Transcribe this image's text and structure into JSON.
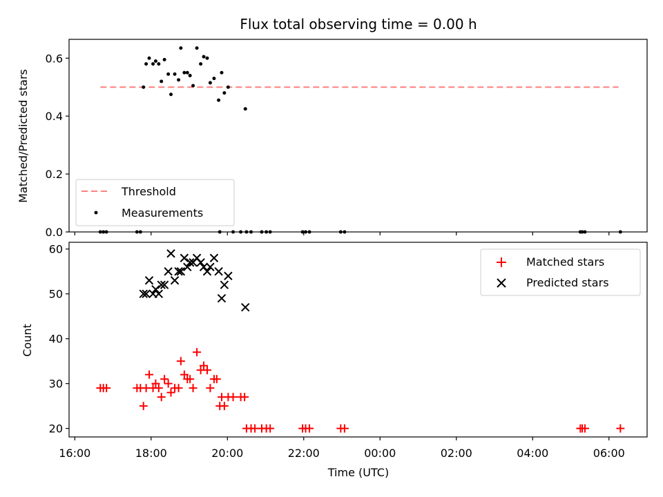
{
  "chart_data": [
    {
      "type": "scatter",
      "title": "Flux total observing time = 0.00 h",
      "ylabel": "Matched/Predicted stars",
      "xlabel": "",
      "xlim": [
        15.85,
        31.0
      ],
      "ylim": [
        0.0,
        0.665
      ],
      "yticks": [
        0.0,
        0.2,
        0.4,
        0.6
      ],
      "ytick_labels": [
        "0.0",
        "0.2",
        "0.4",
        "0.6"
      ],
      "legend": [
        {
          "label": "Threshold",
          "style": "dashed-line",
          "color": "#ff7f7f"
        },
        {
          "label": "Measurements",
          "style": "dot",
          "color": "#000000"
        }
      ],
      "legend_position": "lower-left",
      "threshold": {
        "value": 0.5,
        "x_start": 16.67,
        "x_end": 30.25
      },
      "measurements": [
        {
          "x": 17.8,
          "y": 0.5
        },
        {
          "x": 17.87,
          "y": 0.58
        },
        {
          "x": 17.95,
          "y": 0.6
        },
        {
          "x": 18.05,
          "y": 0.58
        },
        {
          "x": 18.12,
          "y": 0.59
        },
        {
          "x": 18.2,
          "y": 0.58
        },
        {
          "x": 18.27,
          "y": 0.52
        },
        {
          "x": 18.35,
          "y": 0.595
        },
        {
          "x": 18.45,
          "y": 0.545
        },
        {
          "x": 18.52,
          "y": 0.475
        },
        {
          "x": 18.62,
          "y": 0.545
        },
        {
          "x": 18.72,
          "y": 0.525
        },
        {
          "x": 18.78,
          "y": 0.635
        },
        {
          "x": 18.87,
          "y": 0.55
        },
        {
          "x": 18.95,
          "y": 0.55
        },
        {
          "x": 19.02,
          "y": 0.54
        },
        {
          "x": 19.1,
          "y": 0.505
        },
        {
          "x": 19.2,
          "y": 0.635
        },
        {
          "x": 19.3,
          "y": 0.58
        },
        {
          "x": 19.38,
          "y": 0.605
        },
        {
          "x": 19.47,
          "y": 0.6
        },
        {
          "x": 19.55,
          "y": 0.515
        },
        {
          "x": 19.65,
          "y": 0.53
        },
        {
          "x": 19.77,
          "y": 0.455
        },
        {
          "x": 19.85,
          "y": 0.55
        },
        {
          "x": 19.92,
          "y": 0.48
        },
        {
          "x": 20.02,
          "y": 0.5
        },
        {
          "x": 20.47,
          "y": 0.425
        },
        {
          "x": 16.67,
          "y": 0.0
        },
        {
          "x": 16.75,
          "y": 0.0
        },
        {
          "x": 16.83,
          "y": 0.0
        },
        {
          "x": 17.63,
          "y": 0.0
        },
        {
          "x": 17.72,
          "y": 0.0
        },
        {
          "x": 19.8,
          "y": 0.0
        },
        {
          "x": 20.15,
          "y": 0.0
        },
        {
          "x": 20.35,
          "y": 0.0
        },
        {
          "x": 20.5,
          "y": 0.0
        },
        {
          "x": 20.62,
          "y": 0.0
        },
        {
          "x": 20.9,
          "y": 0.0
        },
        {
          "x": 21.02,
          "y": 0.0
        },
        {
          "x": 21.12,
          "y": 0.0
        },
        {
          "x": 21.97,
          "y": 0.0
        },
        {
          "x": 22.05,
          "y": 0.0
        },
        {
          "x": 22.15,
          "y": 0.0
        },
        {
          "x": 22.97,
          "y": 0.0
        },
        {
          "x": 23.07,
          "y": 0.0
        },
        {
          "x": 29.25,
          "y": 0.0
        },
        {
          "x": 29.3,
          "y": 0.0
        },
        {
          "x": 29.37,
          "y": 0.0
        },
        {
          "x": 30.3,
          "y": 0.0
        }
      ]
    },
    {
      "type": "scatter",
      "title": "",
      "xlabel": "Time (UTC)",
      "ylabel": "Count",
      "xlim": [
        15.85,
        31.0
      ],
      "ylim": [
        18.1,
        61.5
      ],
      "xticks": [
        16,
        18,
        20,
        22,
        24,
        26,
        28,
        30
      ],
      "xtick_labels": [
        "16:00",
        "18:00",
        "20:00",
        "22:00",
        "00:00",
        "02:00",
        "04:00",
        "06:00"
      ],
      "yticks": [
        20,
        30,
        40,
        50,
        60
      ],
      "ytick_labels": [
        "20",
        "30",
        "40",
        "50",
        "60"
      ],
      "legend_position": "upper-right",
      "series": [
        {
          "name": "Matched stars",
          "marker": "plus",
          "color": "#ff0000",
          "points": [
            {
              "x": 16.67,
              "y": 29
            },
            {
              "x": 16.75,
              "y": 29
            },
            {
              "x": 16.83,
              "y": 29
            },
            {
              "x": 17.63,
              "y": 29
            },
            {
              "x": 17.72,
              "y": 29
            },
            {
              "x": 17.8,
              "y": 25
            },
            {
              "x": 17.87,
              "y": 29
            },
            {
              "x": 17.95,
              "y": 32
            },
            {
              "x": 18.05,
              "y": 29
            },
            {
              "x": 18.12,
              "y": 30
            },
            {
              "x": 18.2,
              "y": 29
            },
            {
              "x": 18.27,
              "y": 27
            },
            {
              "x": 18.35,
              "y": 31
            },
            {
              "x": 18.45,
              "y": 30
            },
            {
              "x": 18.52,
              "y": 28
            },
            {
              "x": 18.62,
              "y": 29
            },
            {
              "x": 18.72,
              "y": 29
            },
            {
              "x": 18.78,
              "y": 35
            },
            {
              "x": 18.87,
              "y": 32
            },
            {
              "x": 18.95,
              "y": 31
            },
            {
              "x": 19.02,
              "y": 31
            },
            {
              "x": 19.1,
              "y": 29
            },
            {
              "x": 19.2,
              "y": 37
            },
            {
              "x": 19.3,
              "y": 33
            },
            {
              "x": 19.38,
              "y": 34
            },
            {
              "x": 19.47,
              "y": 33
            },
            {
              "x": 19.55,
              "y": 29
            },
            {
              "x": 19.65,
              "y": 31
            },
            {
              "x": 19.72,
              "y": 31
            },
            {
              "x": 19.8,
              "y": 25
            },
            {
              "x": 19.85,
              "y": 27
            },
            {
              "x": 19.92,
              "y": 25
            },
            {
              "x": 20.02,
              "y": 27
            },
            {
              "x": 20.15,
              "y": 27
            },
            {
              "x": 20.35,
              "y": 27
            },
            {
              "x": 20.45,
              "y": 27
            },
            {
              "x": 20.5,
              "y": 20
            },
            {
              "x": 20.62,
              "y": 20
            },
            {
              "x": 20.72,
              "y": 20
            },
            {
              "x": 20.9,
              "y": 20
            },
            {
              "x": 21.02,
              "y": 20
            },
            {
              "x": 21.12,
              "y": 20
            },
            {
              "x": 21.97,
              "y": 20
            },
            {
              "x": 22.05,
              "y": 20
            },
            {
              "x": 22.15,
              "y": 20
            },
            {
              "x": 22.97,
              "y": 20
            },
            {
              "x": 23.07,
              "y": 20
            },
            {
              "x": 29.25,
              "y": 20
            },
            {
              "x": 29.3,
              "y": 20
            },
            {
              "x": 29.37,
              "y": 20
            },
            {
              "x": 30.3,
              "y": 20
            }
          ]
        },
        {
          "name": "Predicted stars",
          "marker": "x",
          "color": "#000000",
          "points": [
            {
              "x": 17.8,
              "y": 50
            },
            {
              "x": 17.87,
              "y": 50
            },
            {
              "x": 17.95,
              "y": 53
            },
            {
              "x": 18.05,
              "y": 50
            },
            {
              "x": 18.12,
              "y": 51
            },
            {
              "x": 18.2,
              "y": 50
            },
            {
              "x": 18.27,
              "y": 52
            },
            {
              "x": 18.35,
              "y": 52
            },
            {
              "x": 18.45,
              "y": 55
            },
            {
              "x": 18.52,
              "y": 59
            },
            {
              "x": 18.62,
              "y": 53
            },
            {
              "x": 18.72,
              "y": 55
            },
            {
              "x": 18.78,
              "y": 55
            },
            {
              "x": 18.87,
              "y": 58
            },
            {
              "x": 18.95,
              "y": 56
            },
            {
              "x": 19.02,
              "y": 57
            },
            {
              "x": 19.1,
              "y": 57
            },
            {
              "x": 19.2,
              "y": 58
            },
            {
              "x": 19.3,
              "y": 57
            },
            {
              "x": 19.38,
              "y": 56
            },
            {
              "x": 19.47,
              "y": 55
            },
            {
              "x": 19.55,
              "y": 56
            },
            {
              "x": 19.65,
              "y": 58
            },
            {
              "x": 19.77,
              "y": 55
            },
            {
              "x": 19.85,
              "y": 49
            },
            {
              "x": 19.92,
              "y": 52
            },
            {
              "x": 20.02,
              "y": 54
            },
            {
              "x": 20.47,
              "y": 47
            }
          ]
        }
      ]
    }
  ]
}
